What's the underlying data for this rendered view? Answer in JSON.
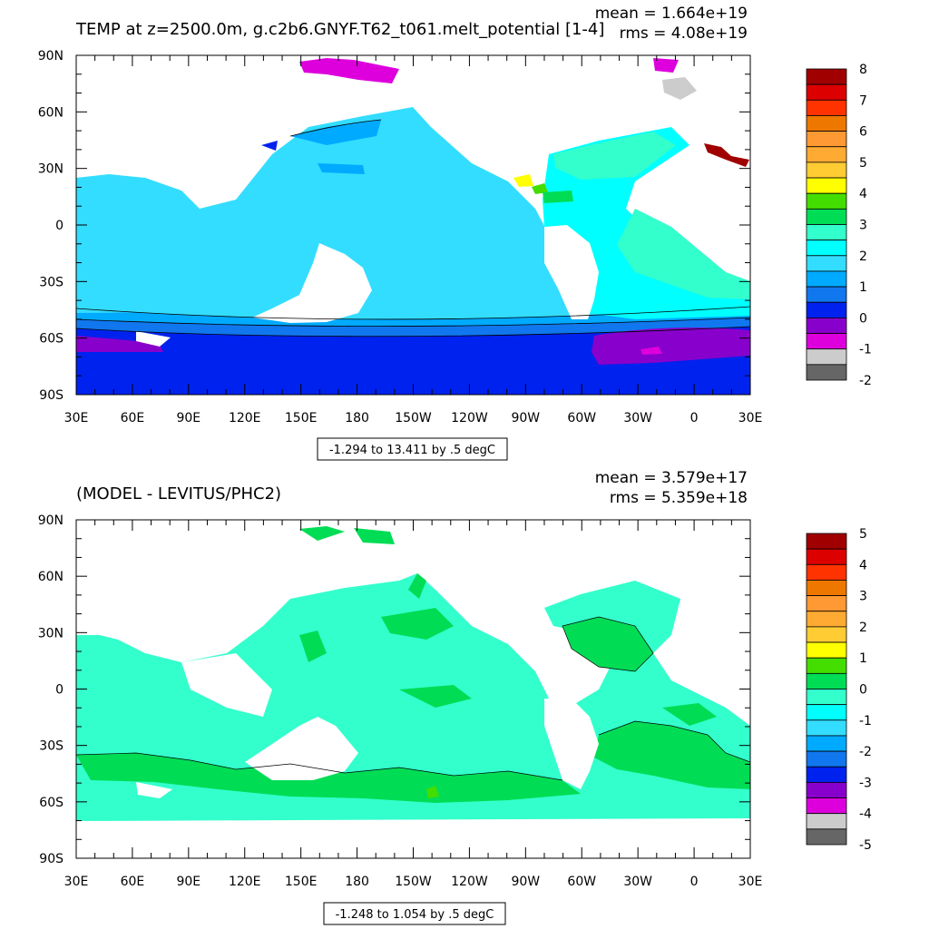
{
  "chart_data": [
    {
      "type": "heatmap",
      "title": "TEMP at z=2500.0m, g.c2b6.GNYF.T62_t061.melt_potential [1-4]",
      "mean_text": "mean = 1.664e+19",
      "rms_text": "rms = 4.08e+19",
      "range_text": "-1.294 to 13.411 by .5 degC",
      "xticks": [
        "30E",
        "60E",
        "90E",
        "120E",
        "150E",
        "180",
        "150W",
        "120W",
        "90W",
        "60W",
        "30W",
        "0",
        "30E"
      ],
      "yticks": [
        "90N",
        "60N",
        "30N",
        "0",
        "30S",
        "60S",
        "90S"
      ],
      "xlim": [
        30,
        390
      ],
      "ylim": [
        -90,
        90
      ],
      "colorbar": {
        "labels": [
          "8",
          "7",
          "6",
          "5",
          "4",
          "3",
          "2",
          "1",
          "0",
          "-1",
          "-2"
        ],
        "colors": [
          "#a00000",
          "#dd0000",
          "#ff3300",
          "#ee7700",
          "#ff9933",
          "#ffaa33",
          "#ffcc33",
          "#ffff00",
          "#44dd00",
          "#00dd55",
          "#33ffcc",
          "#00ffff",
          "#33ddff",
          "#00aaff",
          "#1177ee",
          "#0022ee",
          "#8800cc",
          "#dd00dd",
          "#cccccc",
          "#666666"
        ]
      }
    },
    {
      "type": "heatmap",
      "title": "(MODEL - LEVITUS/PHC2)",
      "mean_text": "mean = 3.579e+17",
      "rms_text": "rms = 5.359e+18",
      "range_text": "-1.248 to 1.054 by .5 degC",
      "xticks": [
        "30E",
        "60E",
        "90E",
        "120E",
        "150E",
        "180",
        "150W",
        "120W",
        "90W",
        "60W",
        "30W",
        "0",
        "30E"
      ],
      "yticks": [
        "90N",
        "60N",
        "30N",
        "0",
        "30S",
        "60S",
        "90S"
      ],
      "xlim": [
        30,
        390
      ],
      "ylim": [
        -90,
        90
      ],
      "colorbar": {
        "labels": [
          "5",
          "4",
          "3",
          "2",
          "1",
          "0",
          "-1",
          "-2",
          "-3",
          "-4",
          "-5"
        ],
        "colors": [
          "#a00000",
          "#dd0000",
          "#ff3300",
          "#ee7700",
          "#ff9933",
          "#ffaa33",
          "#ffcc33",
          "#ffff00",
          "#44dd00",
          "#00dd55",
          "#33ffcc",
          "#00ffff",
          "#33ddff",
          "#00aaff",
          "#1177ee",
          "#0022ee",
          "#8800cc",
          "#dd00dd",
          "#cccccc",
          "#666666"
        ]
      }
    }
  ]
}
